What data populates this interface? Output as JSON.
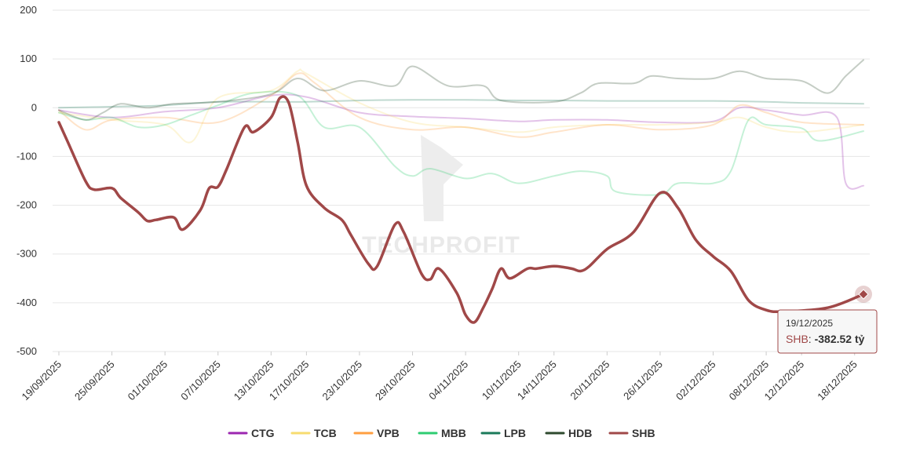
{
  "chart_data": {
    "type": "line",
    "title": "",
    "xlabel": "",
    "ylabel": "",
    "ylim": [
      -500,
      200
    ],
    "yticks": [
      200,
      100,
      0,
      -100,
      -200,
      -300,
      -400,
      -500
    ],
    "grid": true,
    "legend_position": "bottom",
    "watermark": "TECHPROFIT",
    "x_start": "19/09/2025",
    "x_end": "19/12/2025",
    "xticks": [
      "19/09/2025",
      "25/09/2025",
      "01/10/2025",
      "07/10/2025",
      "13/10/2025",
      "17/10/2025",
      "23/10/2025",
      "29/10/2025",
      "04/11/2025",
      "10/11/2025",
      "14/11/2025",
      "20/11/2025",
      "26/11/2025",
      "02/12/2025",
      "08/12/2025",
      "12/12/2025",
      "18/12/2025"
    ],
    "series": [
      {
        "name": "CTG",
        "color": "#9c27b0",
        "highlighted": false,
        "points": [
          [
            "19/09/2025",
            -5
          ],
          [
            "25/09/2025",
            -20
          ],
          [
            "01/10/2025",
            -8
          ],
          [
            "07/10/2025",
            0
          ],
          [
            "13/10/2025",
            25
          ],
          [
            "17/10/2025",
            22
          ],
          [
            "23/10/2025",
            -10
          ],
          [
            "29/10/2025",
            -18
          ],
          [
            "04/11/2025",
            -22
          ],
          [
            "10/11/2025",
            -28
          ],
          [
            "14/11/2025",
            -25
          ],
          [
            "20/11/2025",
            -25
          ],
          [
            "26/11/2025",
            -30
          ],
          [
            "02/12/2025",
            -28
          ],
          [
            "05/12/2025",
            0
          ],
          [
            "08/12/2025",
            -5
          ],
          [
            "12/12/2025",
            -15
          ],
          [
            "16/12/2025",
            -20
          ],
          [
            "17/12/2025",
            -155
          ],
          [
            "19/12/2025",
            -160
          ]
        ]
      },
      {
        "name": "TCB",
        "color": "#f7dc6f",
        "highlighted": false,
        "points": [
          [
            "19/09/2025",
            -10
          ],
          [
            "25/09/2025",
            -25
          ],
          [
            "01/10/2025",
            -35
          ],
          [
            "04/10/2025",
            -70
          ],
          [
            "07/10/2025",
            20
          ],
          [
            "13/10/2025",
            35
          ],
          [
            "16/10/2025",
            75
          ],
          [
            "17/10/2025",
            70
          ],
          [
            "23/10/2025",
            10
          ],
          [
            "29/10/2025",
            -30
          ],
          [
            "04/11/2025",
            -40
          ],
          [
            "10/11/2025",
            -50
          ],
          [
            "14/11/2025",
            -40
          ],
          [
            "20/11/2025",
            -35
          ],
          [
            "26/11/2025",
            -35
          ],
          [
            "02/12/2025",
            -30
          ],
          [
            "05/12/2025",
            -20
          ],
          [
            "08/12/2025",
            -40
          ],
          [
            "12/12/2025",
            -50
          ],
          [
            "19/12/2025",
            -35
          ]
        ]
      },
      {
        "name": "VPB",
        "color": "#ff9f40",
        "highlighted": false,
        "points": [
          [
            "19/09/2025",
            -5
          ],
          [
            "22/09/2025",
            -45
          ],
          [
            "25/09/2025",
            -25
          ],
          [
            "01/10/2025",
            -20
          ],
          [
            "07/10/2025",
            -30
          ],
          [
            "13/10/2025",
            25
          ],
          [
            "16/10/2025",
            70
          ],
          [
            "18/10/2025",
            50
          ],
          [
            "23/10/2025",
            -20
          ],
          [
            "29/10/2025",
            -45
          ],
          [
            "04/11/2025",
            -40
          ],
          [
            "10/11/2025",
            -60
          ],
          [
            "14/11/2025",
            -50
          ],
          [
            "20/11/2025",
            -35
          ],
          [
            "26/11/2025",
            -45
          ],
          [
            "02/12/2025",
            -35
          ],
          [
            "05/12/2025",
            5
          ],
          [
            "08/12/2025",
            -10
          ],
          [
            "12/12/2025",
            -30
          ],
          [
            "19/12/2025",
            -35
          ]
        ]
      },
      {
        "name": "MBB",
        "color": "#2ecc71",
        "highlighted": false,
        "points": [
          [
            "19/09/2025",
            -10
          ],
          [
            "22/09/2025",
            -25
          ],
          [
            "25/09/2025",
            -20
          ],
          [
            "28/09/2025",
            -40
          ],
          [
            "01/10/2025",
            -35
          ],
          [
            "04/10/2025",
            -15
          ],
          [
            "07/10/2025",
            5
          ],
          [
            "11/10/2025",
            30
          ],
          [
            "16/10/2025",
            25
          ],
          [
            "19/10/2025",
            -40
          ],
          [
            "23/10/2025",
            -40
          ],
          [
            "27/10/2025",
            -120
          ],
          [
            "29/10/2025",
            -140
          ],
          [
            "31/10/2025",
            -125
          ],
          [
            "04/11/2025",
            -145
          ],
          [
            "07/11/2025",
            -135
          ],
          [
            "10/11/2025",
            -155
          ],
          [
            "14/11/2025",
            -140
          ],
          [
            "17/11/2025",
            -130
          ],
          [
            "20/11/2025",
            -140
          ],
          [
            "21/11/2025",
            -172
          ],
          [
            "26/11/2025",
            -178
          ],
          [
            "28/11/2025",
            -155
          ],
          [
            "02/12/2025",
            -155
          ],
          [
            "04/12/2025",
            -130
          ],
          [
            "06/12/2025",
            -25
          ],
          [
            "08/12/2025",
            -35
          ],
          [
            "12/12/2025",
            -42
          ],
          [
            "14/12/2025",
            -68
          ],
          [
            "19/12/2025",
            -48
          ]
        ]
      },
      {
        "name": "LPB",
        "color": "#1b7a5a",
        "highlighted": false,
        "points": [
          [
            "19/09/2025",
            0
          ],
          [
            "25/09/2025",
            2
          ],
          [
            "01/10/2025",
            5
          ],
          [
            "07/10/2025",
            12
          ],
          [
            "13/10/2025",
            12
          ],
          [
            "17/10/2025",
            12
          ],
          [
            "23/10/2025",
            15
          ],
          [
            "29/10/2025",
            16
          ],
          [
            "04/11/2025",
            16
          ],
          [
            "10/11/2025",
            15
          ],
          [
            "14/11/2025",
            15
          ],
          [
            "20/11/2025",
            14
          ],
          [
            "26/11/2025",
            14
          ],
          [
            "02/12/2025",
            14
          ],
          [
            "08/12/2025",
            12
          ],
          [
            "12/12/2025",
            10
          ],
          [
            "19/12/2025",
            8
          ]
        ]
      },
      {
        "name": "HDB",
        "color": "#2e4a2e",
        "highlighted": false,
        "points": [
          [
            "19/09/2025",
            -5
          ],
          [
            "22/09/2025",
            -25
          ],
          [
            "24/09/2025",
            -10
          ],
          [
            "26/09/2025",
            8
          ],
          [
            "29/09/2025",
            0
          ],
          [
            "02/10/2025",
            8
          ],
          [
            "07/10/2025",
            12
          ],
          [
            "13/10/2025",
            28
          ],
          [
            "16/10/2025",
            60
          ],
          [
            "19/10/2025",
            35
          ],
          [
            "23/10/2025",
            55
          ],
          [
            "27/10/2025",
            45
          ],
          [
            "29/10/2025",
            85
          ],
          [
            "02/11/2025",
            45
          ],
          [
            "06/11/2025",
            45
          ],
          [
            "08/11/2025",
            15
          ],
          [
            "14/11/2025",
            12
          ],
          [
            "17/11/2025",
            30
          ],
          [
            "19/11/2025",
            50
          ],
          [
            "23/11/2025",
            50
          ],
          [
            "25/11/2025",
            65
          ],
          [
            "28/11/2025",
            60
          ],
          [
            "02/12/2025",
            60
          ],
          [
            "05/12/2025",
            75
          ],
          [
            "08/12/2025",
            60
          ],
          [
            "12/12/2025",
            55
          ],
          [
            "15/12/2025",
            30
          ],
          [
            "17/12/2025",
            65
          ],
          [
            "19/12/2025",
            98
          ]
        ]
      },
      {
        "name": "SHB",
        "color": "#a04848",
        "highlighted": true,
        "points": [
          [
            "19/09/2025",
            -30
          ],
          [
            "20/09/2025",
            -70
          ],
          [
            "22/09/2025",
            -150
          ],
          [
            "23/09/2025",
            -168
          ],
          [
            "25/09/2025",
            -165
          ],
          [
            "26/09/2025",
            -185
          ],
          [
            "28/09/2025",
            -215
          ],
          [
            "29/09/2025",
            -232
          ],
          [
            "30/09/2025",
            -230
          ],
          [
            "02/10/2025",
            -225
          ],
          [
            "03/10/2025",
            -250
          ],
          [
            "05/10/2025",
            -210
          ],
          [
            "06/10/2025",
            -165
          ],
          [
            "07/10/2025",
            -162
          ],
          [
            "08/10/2025",
            -125
          ],
          [
            "10/10/2025",
            -40
          ],
          [
            "11/10/2025",
            -50
          ],
          [
            "13/10/2025",
            -20
          ],
          [
            "14/10/2025",
            20
          ],
          [
            "15/10/2025",
            10
          ],
          [
            "16/10/2025",
            -70
          ],
          [
            "17/10/2025",
            -160
          ],
          [
            "19/10/2025",
            -205
          ],
          [
            "21/10/2025",
            -230
          ],
          [
            "22/10/2025",
            -260
          ],
          [
            "24/10/2025",
            -320
          ],
          [
            "25/10/2025",
            -325
          ],
          [
            "27/10/2025",
            -240
          ],
          [
            "28/10/2025",
            -255
          ],
          [
            "30/10/2025",
            -340
          ],
          [
            "31/10/2025",
            -352
          ],
          [
            "01/11/2025",
            -330
          ],
          [
            "03/11/2025",
            -380
          ],
          [
            "04/11/2025",
            -425
          ],
          [
            "05/11/2025",
            -440
          ],
          [
            "06/11/2025",
            -410
          ],
          [
            "07/11/2025",
            -372
          ],
          [
            "08/11/2025",
            -330
          ],
          [
            "09/11/2025",
            -350
          ],
          [
            "11/11/2025",
            -330
          ],
          [
            "12/11/2025",
            -330
          ],
          [
            "14/11/2025",
            -325
          ],
          [
            "16/11/2025",
            -330
          ],
          [
            "17/11/2025",
            -335
          ],
          [
            "18/11/2025",
            -325
          ],
          [
            "20/11/2025",
            -290
          ],
          [
            "23/11/2025",
            -255
          ],
          [
            "26/11/2025",
            -175
          ],
          [
            "28/11/2025",
            -205
          ],
          [
            "30/11/2025",
            -270
          ],
          [
            "02/12/2025",
            -305
          ],
          [
            "04/12/2025",
            -335
          ],
          [
            "06/12/2025",
            -395
          ],
          [
            "08/12/2025",
            -415
          ],
          [
            "10/12/2025",
            -418
          ],
          [
            "15/12/2025",
            -410
          ],
          [
            "19/12/2025",
            -382.52
          ]
        ]
      }
    ]
  },
  "tooltip": {
    "date": "19/12/2025",
    "series": "SHB",
    "separator": ": ",
    "value": "-382.52 tỷ"
  }
}
